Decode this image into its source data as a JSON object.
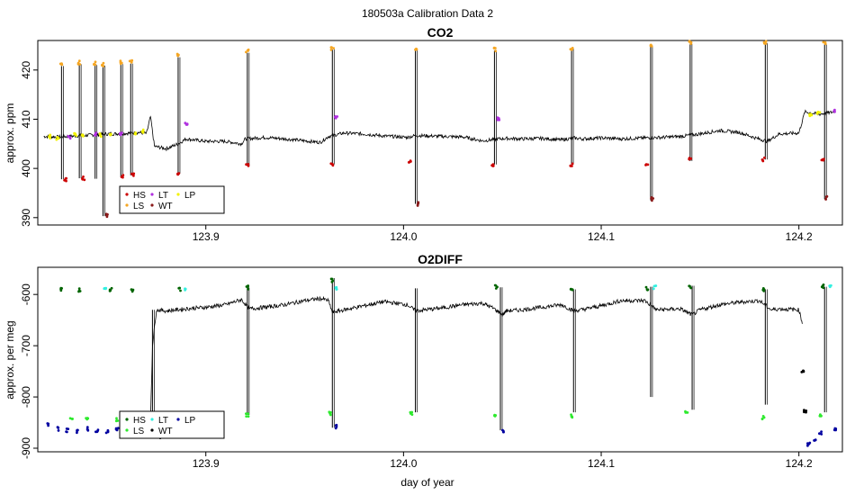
{
  "page_title": "180503a   Calibration Data 2",
  "colors": {
    "trace": "#000000",
    "HS": "#cc0000",
    "LS": "#f5a623",
    "LT": "#b030e0",
    "WT": "#8b1a1a",
    "LP": "#f2f200",
    "HS_o2": "#006400",
    "LS_o2": "#2eea2e",
    "LT_o2": "#33f0e0",
    "WT_o2": "#000000",
    "LP_o2": "#0000a0"
  },
  "chart_data": [
    {
      "type": "line",
      "title": "CO2",
      "ylabel": "approx. ppm",
      "xlabel": "",
      "xlim": [
        123.815,
        124.222
      ],
      "ylim": [
        388.5,
        426
      ],
      "xticks": [
        123.9,
        124.0,
        124.1,
        124.2
      ],
      "xtick_labels": [
        "123.9",
        "124.0",
        "124.1",
        "124.2"
      ],
      "yticks": [
        390,
        400,
        410,
        420
      ],
      "ytick_labels": [
        "390",
        "400",
        "410",
        "420"
      ],
      "legend": {
        "position": "bottom-left",
        "entries": [
          "HS",
          "LS",
          "LT",
          "WT",
          "LP"
        ]
      },
      "baseline": [
        [
          123.818,
          406.5
        ],
        [
          123.826,
          406.4
        ],
        [
          123.834,
          406.6
        ],
        [
          123.842,
          406.8
        ],
        [
          123.85,
          407.0
        ],
        [
          123.858,
          407.1
        ],
        [
          123.866,
          407.3
        ],
        [
          123.87,
          407.1
        ],
        [
          123.872,
          410.5
        ],
        [
          123.874,
          404.5
        ],
        [
          123.88,
          404.0
        ],
        [
          123.886,
          405.0
        ],
        [
          123.89,
          406.0
        ],
        [
          123.9,
          405.5
        ],
        [
          123.91,
          405.5
        ],
        [
          123.918,
          405.0
        ],
        [
          123.92,
          406.0
        ],
        [
          123.93,
          406.3
        ],
        [
          123.94,
          406.0
        ],
        [
          123.95,
          405.6
        ],
        [
          123.958,
          405.3
        ],
        [
          123.962,
          406.5
        ],
        [
          123.97,
          407.2
        ],
        [
          123.98,
          407.0
        ],
        [
          123.99,
          406.6
        ],
        [
          124.002,
          406.3
        ],
        [
          124.006,
          406.7
        ],
        [
          124.02,
          406.5
        ],
        [
          124.03,
          406.4
        ],
        [
          124.04,
          405.6
        ],
        [
          124.048,
          406.0
        ],
        [
          124.052,
          406.1
        ],
        [
          124.06,
          406.0
        ],
        [
          124.07,
          406.1
        ],
        [
          124.08,
          405.8
        ],
        [
          124.086,
          406.2
        ],
        [
          124.09,
          406.0
        ],
        [
          124.1,
          406.2
        ],
        [
          124.11,
          406.0
        ],
        [
          124.122,
          406.2
        ],
        [
          124.13,
          406.3
        ],
        [
          124.14,
          406.5
        ],
        [
          124.148,
          406.9
        ],
        [
          124.16,
          407.7
        ],
        [
          124.17,
          407.3
        ],
        [
          124.178,
          406.2
        ],
        [
          124.184,
          405.5
        ],
        [
          124.19,
          407.0
        ],
        [
          124.2,
          407.2
        ],
        [
          124.203,
          411.5
        ],
        [
          124.21,
          411.0
        ],
        [
          124.218,
          411.5
        ]
      ],
      "calibrations": [
        {
          "x": 123.827,
          "high": 420.8,
          "low": 397.8
        },
        {
          "x": 123.836,
          "high": 421.2,
          "low": 398.0
        },
        {
          "x": 123.844,
          "high": 421.0,
          "low": 397.9
        },
        {
          "x": 123.848,
          "high": 420.9,
          "low": 390.3
        },
        {
          "x": 123.857,
          "high": 421.2,
          "low": 398.3
        },
        {
          "x": 123.862,
          "high": 421.3,
          "low": 398.6
        },
        {
          "x": 123.886,
          "high": 422.6,
          "low": 399.0
        },
        {
          "x": 123.921,
          "high": 423.5,
          "low": 400.5
        },
        {
          "x": 123.964,
          "high": 424.2,
          "low": 400.8
        },
        {
          "x": 124.006,
          "high": 424.0,
          "low": 392.8
        },
        {
          "x": 124.046,
          "high": 424.0,
          "low": 400.8
        },
        {
          "x": 124.085,
          "high": 424.3,
          "low": 400.8
        },
        {
          "x": 124.125,
          "high": 425.0,
          "low": 393.5
        },
        {
          "x": 124.145,
          "high": 425.3,
          "low": 401.5
        },
        {
          "x": 124.183,
          "high": 425.5,
          "low": 401.8
        },
        {
          "x": 124.213,
          "high": 425.2,
          "low": 393.8
        }
      ],
      "markers": [
        {
          "code": "LS",
          "points": [
            [
              123.827,
              421.0
            ],
            [
              123.836,
              421.5
            ],
            [
              123.844,
              421.3
            ],
            [
              123.848,
              421.1
            ],
            [
              123.857,
              421.5
            ],
            [
              123.862,
              421.6
            ],
            [
              123.886,
              422.9
            ],
            [
              123.921,
              423.8
            ],
            [
              123.964,
              424.3
            ],
            [
              124.006,
              424.2
            ],
            [
              124.046,
              424.2
            ],
            [
              124.085,
              424.4
            ],
            [
              124.125,
              425.1
            ],
            [
              124.145,
              425.5
            ],
            [
              124.183,
              425.6
            ],
            [
              124.213,
              425.5
            ]
          ]
        },
        {
          "code": "HS",
          "points": [
            [
              123.829,
              397.8
            ],
            [
              123.838,
              398.0
            ],
            [
              123.858,
              398.3
            ],
            [
              123.863,
              398.6
            ],
            [
              123.886,
              399.0
            ],
            [
              123.921,
              400.5
            ],
            [
              123.964,
              400.9
            ],
            [
              124.003,
              401.2
            ],
            [
              124.045,
              400.8
            ],
            [
              124.085,
              400.8
            ],
            [
              124.123,
              401.0
            ],
            [
              124.145,
              401.8
            ],
            [
              124.182,
              401.8
            ],
            [
              124.212,
              402.0
            ]
          ]
        },
        {
          "code": "WT",
          "points": [
            [
              123.85,
              390.4
            ],
            [
              124.007,
              392.8
            ],
            [
              124.126,
              393.8
            ],
            [
              124.214,
              394.0
            ]
          ]
        },
        {
          "code": "LT",
          "points": [
            [
              123.831,
              406.4
            ],
            [
              123.844,
              406.9
            ],
            [
              123.857,
              407.1
            ],
            [
              123.89,
              409.2
            ],
            [
              123.966,
              410.2
            ],
            [
              124.048,
              410.0
            ],
            [
              124.218,
              411.6
            ]
          ]
        },
        {
          "code": "LP",
          "points": [
            [
              123.821,
              406.5
            ],
            [
              123.825,
              406.2
            ],
            [
              123.834,
              406.8
            ],
            [
              123.838,
              406.5
            ],
            [
              123.847,
              406.8
            ],
            [
              123.852,
              407.0
            ],
            [
              123.864,
              407.2
            ],
            [
              123.868,
              407.5
            ],
            [
              124.206,
              411.0
            ],
            [
              124.21,
              411.3
            ]
          ]
        }
      ]
    },
    {
      "type": "line",
      "title": "O2DIFF",
      "ylabel": "approx. per meg",
      "xlabel": "day of year",
      "xlim": [
        123.815,
        124.222
      ],
      "ylim": [
        -907,
        -547
      ],
      "xticks": [
        123.9,
        124.0,
        124.1,
        124.2
      ],
      "xtick_labels": [
        "123.9",
        "124.0",
        "124.1",
        "124.2"
      ],
      "yticks": [
        -900,
        -800,
        -700,
        -600
      ],
      "ytick_labels": [
        "-900",
        "-800",
        "-700",
        "-600"
      ],
      "legend": {
        "position": "bottom-left",
        "entries": [
          "HS",
          "LS",
          "LT",
          "WT",
          "LP"
        ]
      },
      "baseline": [
        [
          123.872,
          -850
        ],
        [
          123.873,
          -700
        ],
        [
          123.875,
          -630
        ],
        [
          123.88,
          -632
        ],
        [
          123.89,
          -628
        ],
        [
          123.9,
          -625
        ],
        [
          123.91,
          -620
        ],
        [
          123.918,
          -610
        ],
        [
          123.922,
          -628
        ],
        [
          123.93,
          -625
        ],
        [
          123.94,
          -620
        ],
        [
          123.95,
          -612
        ],
        [
          123.958,
          -608
        ],
        [
          123.962,
          -612
        ],
        [
          123.964,
          -635
        ],
        [
          123.97,
          -630
        ],
        [
          123.98,
          -622
        ],
        [
          123.99,
          -614
        ],
        [
          124.002,
          -620
        ],
        [
          124.006,
          -632
        ],
        [
          124.02,
          -626
        ],
        [
          124.03,
          -620
        ],
        [
          124.04,
          -617
        ],
        [
          124.046,
          -628
        ],
        [
          124.05,
          -640
        ],
        [
          124.052,
          -632
        ],
        [
          124.06,
          -630
        ],
        [
          124.07,
          -625
        ],
        [
          124.08,
          -620
        ],
        [
          124.086,
          -632
        ],
        [
          124.09,
          -630
        ],
        [
          124.1,
          -622
        ],
        [
          124.11,
          -612
        ],
        [
          124.122,
          -612
        ],
        [
          124.128,
          -630
        ],
        [
          124.14,
          -628
        ],
        [
          124.146,
          -640
        ],
        [
          124.15,
          -630
        ],
        [
          124.16,
          -620
        ],
        [
          124.17,
          -615
        ],
        [
          124.18,
          -612
        ],
        [
          124.186,
          -630
        ],
        [
          124.19,
          -628
        ],
        [
          124.2,
          -630
        ],
        [
          124.202,
          -660
        ]
      ],
      "calibrations": [
        {
          "x": 123.873,
          "high": -630,
          "low": -870
        },
        {
          "x": 123.921,
          "high": -587,
          "low": -835
        },
        {
          "x": 123.964,
          "high": -568,
          "low": -860
        },
        {
          "x": 124.006,
          "high": -588,
          "low": -830
        },
        {
          "x": 124.049,
          "high": -586,
          "low": -865
        },
        {
          "x": 124.086,
          "high": -590,
          "low": -830
        },
        {
          "x": 124.125,
          "high": -585,
          "low": -800
        },
        {
          "x": 124.146,
          "high": -583,
          "low": -825
        },
        {
          "x": 124.183,
          "high": -590,
          "low": -815
        },
        {
          "x": 124.213,
          "high": -585,
          "low": -830
        }
      ],
      "markers": [
        {
          "code": "HS",
          "points": [
            [
              123.827,
              -590
            ],
            [
              123.836,
              -591
            ],
            [
              123.852,
              -590
            ],
            [
              123.863,
              -591
            ],
            [
              123.887,
              -590
            ],
            [
              123.921,
              -586
            ],
            [
              123.964,
              -573
            ],
            [
              124.047,
              -585
            ],
            [
              124.085,
              -588
            ],
            [
              124.123,
              -588
            ],
            [
              124.145,
              -584
            ],
            [
              124.182,
              -590
            ],
            [
              124.212,
              -584
            ]
          ]
        },
        {
          "code": "LS",
          "points": [
            [
              123.832,
              -845
            ],
            [
              123.84,
              -843
            ],
            [
              123.855,
              -845
            ],
            [
              123.921,
              -836
            ],
            [
              123.963,
              -832
            ],
            [
              124.004,
              -832
            ],
            [
              124.046,
              -835
            ],
            [
              124.085,
              -838
            ],
            [
              124.143,
              -828
            ],
            [
              124.182,
              -840
            ],
            [
              124.211,
              -835
            ]
          ]
        },
        {
          "code": "LT",
          "points": [
            [
              123.849,
              -591
            ],
            [
              123.89,
              -588
            ],
            [
              123.966,
              -588
            ],
            [
              124.127,
              -586
            ],
            [
              124.216,
              -584
            ]
          ]
        },
        {
          "code": "WT",
          "points": [
            [
              123.877,
              -880
            ],
            [
              124.202,
              -752
            ],
            [
              124.203,
              -828
            ]
          ]
        },
        {
          "code": "LP",
          "points": [
            [
              123.82,
              -855
            ],
            [
              123.825,
              -862
            ],
            [
              123.83,
              -865
            ],
            [
              123.835,
              -868
            ],
            [
              123.84,
              -862
            ],
            [
              123.845,
              -866
            ],
            [
              123.85,
              -868
            ],
            [
              123.855,
              -862
            ],
            [
              123.86,
              -858
            ],
            [
              123.966,
              -858
            ],
            [
              124.05,
              -865
            ],
            [
              124.205,
              -892
            ],
            [
              124.208,
              -885
            ],
            [
              124.211,
              -870
            ],
            [
              124.218,
              -862
            ]
          ]
        }
      ]
    }
  ]
}
